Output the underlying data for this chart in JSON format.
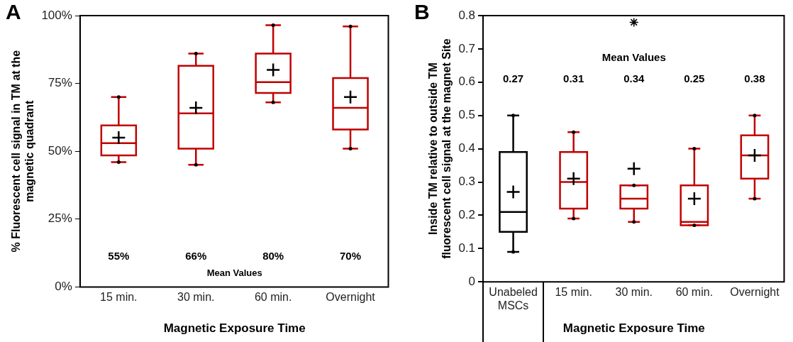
{
  "chart_data": [
    {
      "type": "box",
      "title": "A",
      "xlabel": "Magnetic Exposure Time",
      "ylabel": "% Fluorescent cell signal in TM at the magnetic quadrant",
      "categories": [
        "15 min.",
        "30 min.",
        "60 min.",
        "Overnight"
      ],
      "colors": [
        "#c00000",
        "#c00000",
        "#c00000",
        "#c00000"
      ],
      "boxes": [
        {
          "low": 46,
          "q1": 48.5,
          "median": 53,
          "q3": 59.5,
          "high": 70,
          "mean": 55
        },
        {
          "low": 45,
          "q1": 51,
          "median": 64,
          "q3": 81.5,
          "high": 86,
          "mean": 66
        },
        {
          "low": 68,
          "q1": 71.5,
          "median": 75.5,
          "q3": 86,
          "high": 96.5,
          "mean": 80
        },
        {
          "low": 51,
          "q1": 58,
          "median": 66,
          "q3": 77,
          "high": 96,
          "mean": 70
        }
      ],
      "ylim": [
        0,
        100
      ],
      "yticks": [
        {
          "value": 0,
          "label": "0%"
        },
        {
          "value": 25,
          "label": "25%"
        },
        {
          "value": 50,
          "label": "50%"
        },
        {
          "value": 75,
          "label": "75%"
        },
        {
          "value": 100,
          "label": "100%"
        }
      ],
      "annotations": [
        "55%",
        "66%",
        "80%",
        "70%",
        "Mean Values"
      ]
    },
    {
      "type": "box",
      "title": "B",
      "xlabel": "Magnetic Exposure Time",
      "ylabel": "Inside TM relative to outside TM fluorescent cell signal at the magnet Site",
      "categories": [
        "Unabeled MSCs",
        "15 min.",
        "30 min.",
        "60 min.",
        "Overnight"
      ],
      "colors": [
        "#000000",
        "#c00000",
        "#c00000",
        "#c00000",
        "#c00000"
      ],
      "boxes": [
        {
          "low": 0.09,
          "q1": 0.15,
          "median": 0.21,
          "q3": 0.39,
          "high": 0.5,
          "mean": 0.27
        },
        {
          "low": 0.19,
          "q1": 0.22,
          "median": 0.3,
          "q3": 0.39,
          "high": 0.45,
          "mean": 0.31
        },
        {
          "low": 0.18,
          "q1": 0.22,
          "median": 0.25,
          "q3": 0.29,
          "high": 0.29,
          "mean": 0.34,
          "outliers": [
            0.78
          ]
        },
        {
          "low": 0.17,
          "q1": 0.17,
          "median": 0.18,
          "q3": 0.29,
          "high": 0.4,
          "mean": 0.25
        },
        {
          "low": 0.25,
          "q1": 0.31,
          "median": 0.38,
          "q3": 0.44,
          "high": 0.5,
          "mean": 0.38
        }
      ],
      "ylim": [
        0,
        0.8
      ],
      "yticks": [
        0,
        0.1,
        0.2,
        0.3,
        0.4,
        0.5,
        0.6,
        0.7,
        0.8
      ],
      "annotations": [
        "0.27",
        "0.31",
        "0.34",
        "0.25",
        "0.38",
        "Mean Values"
      ]
    }
  ]
}
